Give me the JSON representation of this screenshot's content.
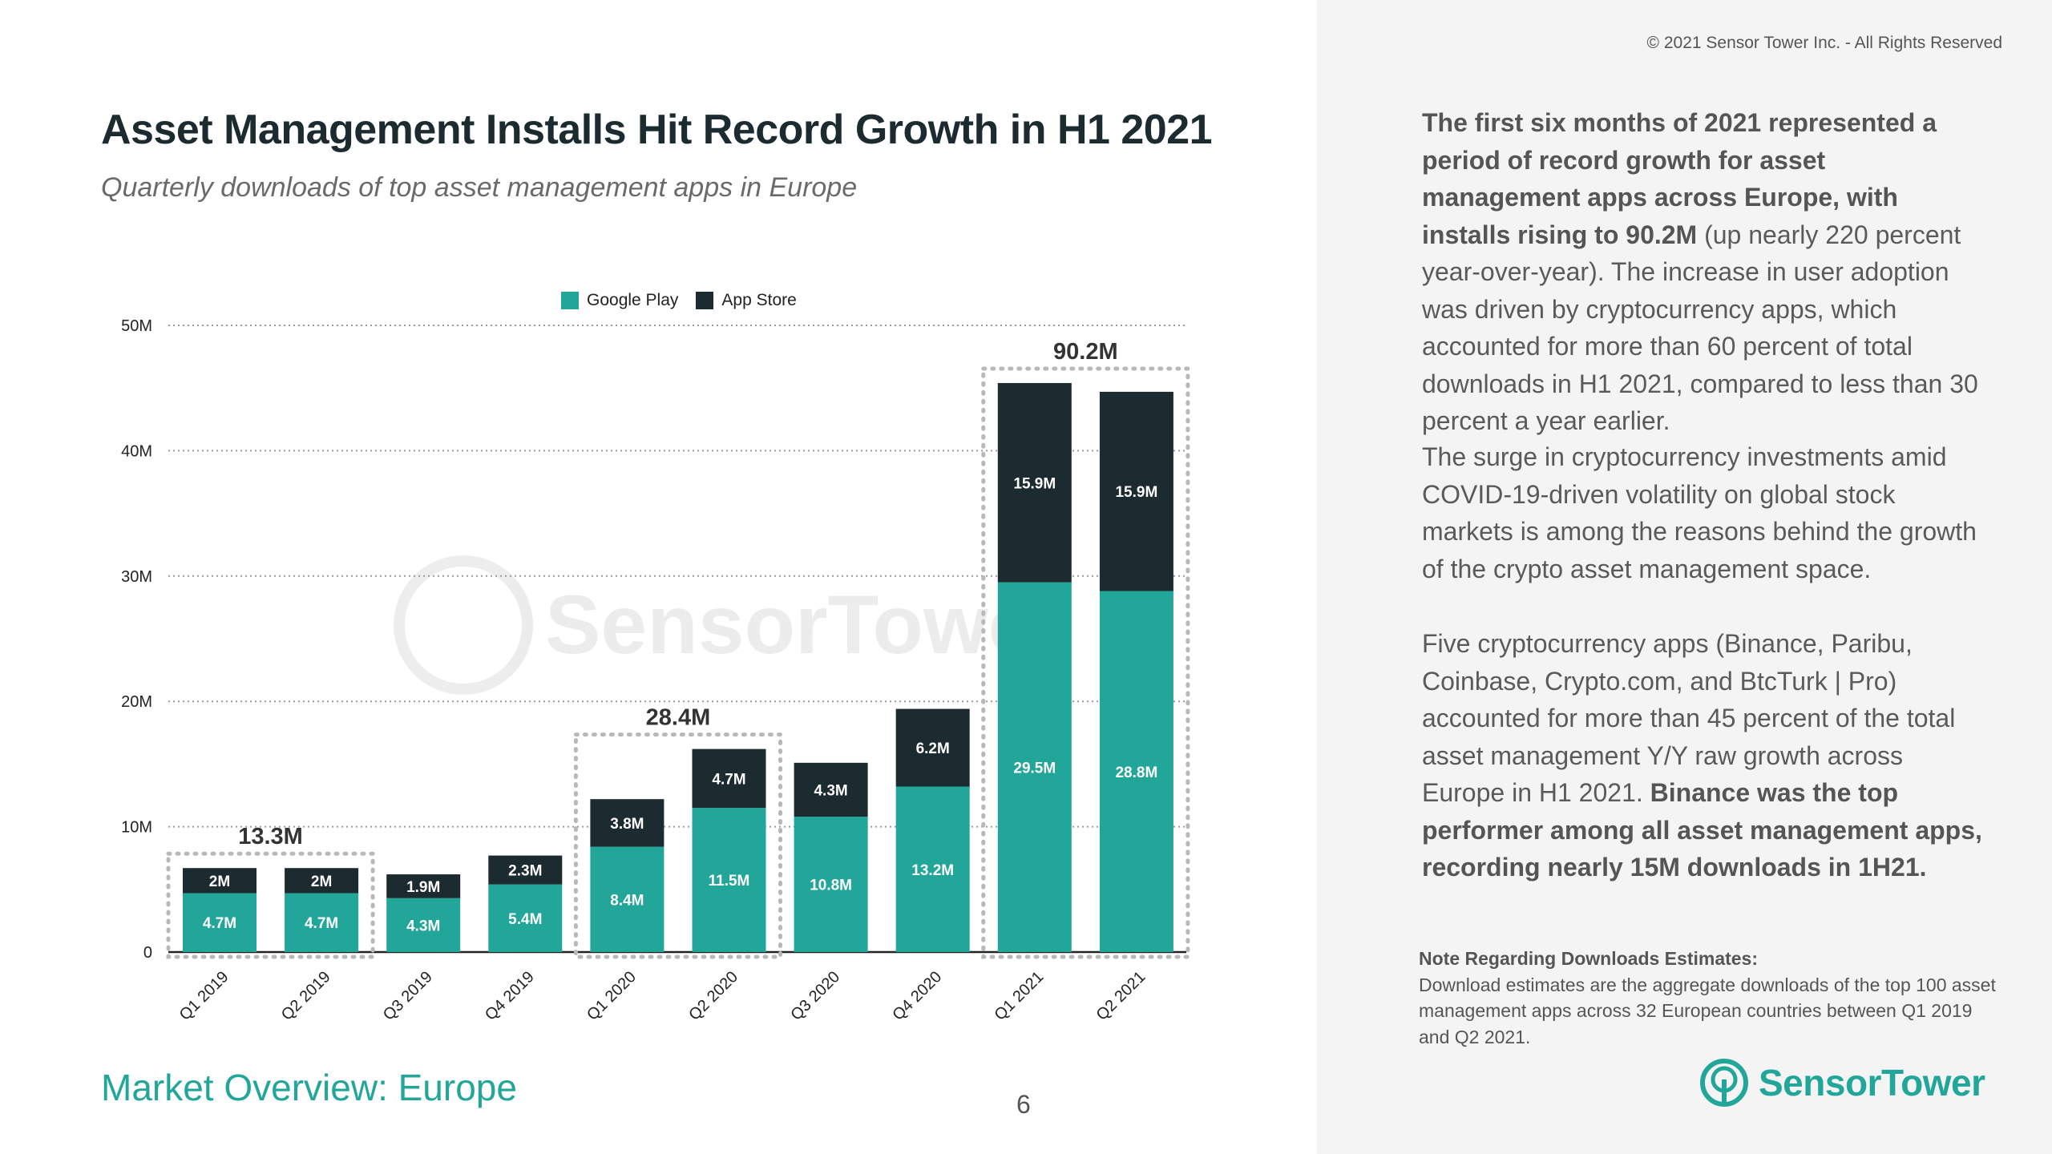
{
  "copyright": "© 2021 Sensor Tower Inc. - All Rights Reserved",
  "title": "Asset Management Installs Hit Record Growth in H1 2021",
  "subtitle": "Quarterly downloads of top asset management apps in Europe",
  "footer": "Market Overview: Europe",
  "page_number": "6",
  "brand": "SensorTower",
  "colors": {
    "google_play": "#22a699",
    "app_store": "#1c2b30",
    "accent_text": "#22a699"
  },
  "paragraphs": {
    "p1_bold": "The first six months of 2021 represented a period of record growth for asset management apps across Europe, with installs rising to 90.2M",
    "p1_rest": " (up nearly 220 percent year-over-year). The increase in user adoption was driven by cryptocurrency apps, which accounted for more than 60 percent of total downloads in H1 2021, compared to less than 30 percent a year earlier.",
    "p2": "The surge in cryptocurrency investments amid COVID-19-driven volatility on global stock markets is among the reasons behind the growth of the crypto asset management space.",
    "p3_normal": "Five cryptocurrency apps (Binance, Paribu, Coinbase, Crypto.com, and BtcTurk | Pro) accounted for more than 45 percent of the total asset management Y/Y raw growth across Europe in H1 2021. ",
    "p3_bold": "Binance was the top performer among all asset management apps, recording nearly 15M downloads in 1H21."
  },
  "note": {
    "title": "Note Regarding Downloads Estimates:",
    "body": "Download estimates are the aggregate downloads of the top 100 asset management apps across 32 European countries between Q1 2019 and Q2 2021."
  },
  "chart_data": {
    "type": "bar",
    "stacked": true,
    "categories": [
      "Q1 2019",
      "Q2 2019",
      "Q3 2019",
      "Q4 2019",
      "Q1 2020",
      "Q2 2020",
      "Q3 2020",
      "Q4 2020",
      "Q1 2021",
      "Q2 2021"
    ],
    "series": [
      {
        "name": "Google Play",
        "values": [
          4.7,
          4.7,
          4.3,
          5.4,
          8.4,
          11.5,
          10.8,
          13.2,
          29.5,
          28.8
        ],
        "labels": [
          "4.7M",
          "4.7M",
          "4.3M",
          "5.4M",
          "8.4M",
          "11.5M",
          "10.8M",
          "13.2M",
          "29.5M",
          "28.8M"
        ]
      },
      {
        "name": "App Store",
        "values": [
          2,
          2,
          1.9,
          2.3,
          3.8,
          4.7,
          4.3,
          6.2,
          15.9,
          15.9
        ],
        "labels": [
          "2M",
          "2M",
          "1.9M",
          "2.3M",
          "3.8M",
          "4.7M",
          "4.3M",
          "6.2M",
          "15.9M",
          "15.9M"
        ]
      }
    ],
    "ylim": [
      0,
      50
    ],
    "yticks": [
      0,
      10,
      20,
      30,
      40,
      50
    ],
    "ytick_labels": [
      "0",
      "10M",
      "20M",
      "30M",
      "40M",
      "50M"
    ],
    "grid": true,
    "legend": "top-center",
    "watermark": "SensorTower",
    "annotations": [
      {
        "label": "13.3M",
        "from": 0,
        "to": 1
      },
      {
        "label": "28.4M",
        "from": 4,
        "to": 5
      },
      {
        "label": "90.2M",
        "from": 8,
        "to": 9
      }
    ]
  }
}
